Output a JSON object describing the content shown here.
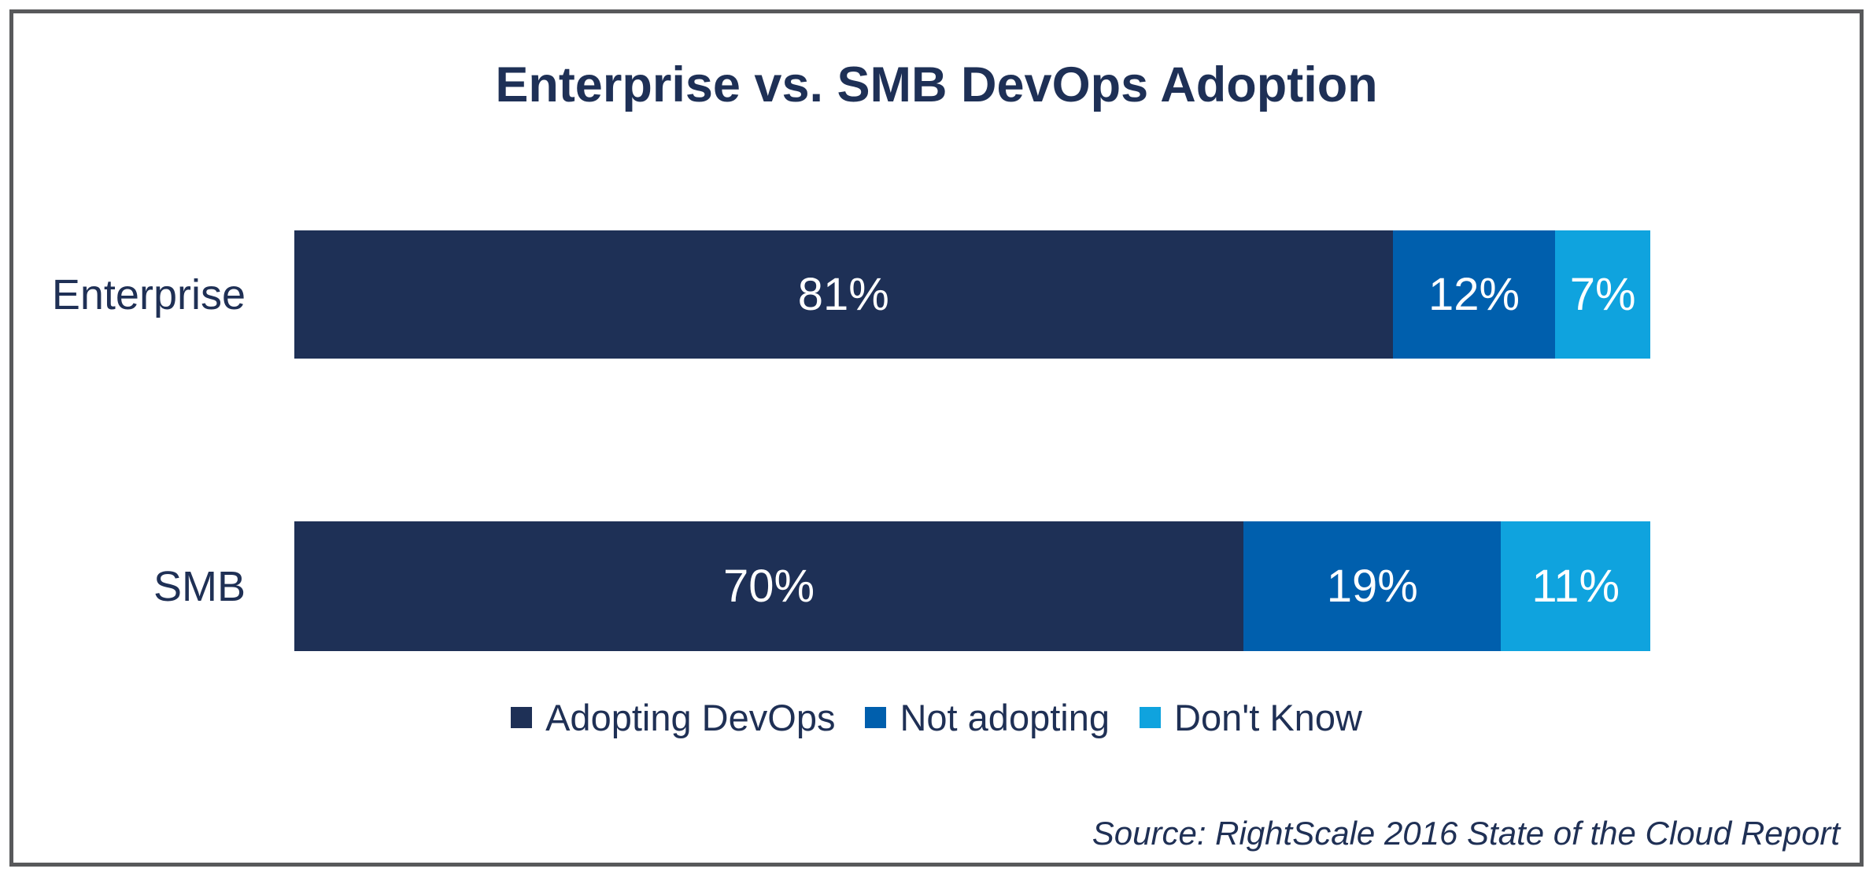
{
  "chart_data": {
    "type": "bar",
    "orientation": "horizontal",
    "stacked": true,
    "title": "Enterprise vs. SMB DevOps Adoption",
    "categories": [
      "Enterprise",
      "SMB"
    ],
    "series": [
      {
        "name": "Adopting DevOps",
        "color": "#1E3056",
        "values": [
          81,
          70
        ]
      },
      {
        "name": "Not adopting",
        "color": "#005FAD",
        "values": [
          12,
          19
        ]
      },
      {
        "name": "Don't Know",
        "color": "#0FA3DE",
        "values": [
          7,
          11
        ]
      }
    ],
    "value_labels": [
      [
        "81%",
        "12%",
        "7%"
      ],
      [
        "70%",
        "19%",
        "11%"
      ]
    ],
    "xlim": [
      0,
      100
    ],
    "grid": false,
    "legend_position": "bottom",
    "source": "Source: RightScale 2016 State of the Cloud Report"
  },
  "frame": {
    "border_color": "#58595B",
    "background": "#ffffff"
  },
  "text_color": "#1F3055"
}
